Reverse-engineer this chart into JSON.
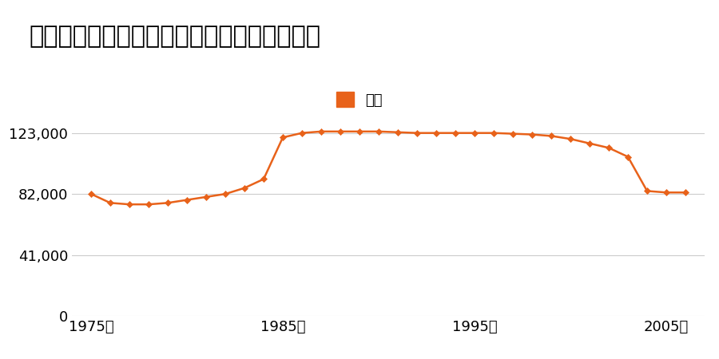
{
  "title": "鹿児島県加世田市本町２０番１１の地価推移",
  "legend_label": "価格",
  "line_color": "#E8621A",
  "marker_color": "#E8621A",
  "background_color": "#FFFFFF",
  "years": [
    1975,
    1976,
    1977,
    1978,
    1979,
    1980,
    1981,
    1982,
    1983,
    1984,
    1985,
    1986,
    1987,
    1988,
    1989,
    1990,
    1991,
    1992,
    1993,
    1994,
    1995,
    1996,
    1997,
    1998,
    1999,
    2000,
    2001,
    2002,
    2003,
    2004,
    2005,
    2006
  ],
  "values": [
    82000,
    76000,
    75000,
    75000,
    76000,
    78000,
    80000,
    82000,
    86000,
    92000,
    120000,
    123000,
    124000,
    124000,
    124000,
    124000,
    123500,
    123000,
    123000,
    123000,
    123000,
    123000,
    122500,
    122000,
    121000,
    119000,
    116000,
    113000,
    107000,
    84000,
    83000,
    83000
  ],
  "yticks": [
    0,
    41000,
    82000,
    123000
  ],
  "ytick_labels": [
    "0",
    "41,000",
    "82,000",
    "123,000"
  ],
  "xticks": [
    1975,
    1985,
    1995,
    2005
  ],
  "xtick_labels": [
    "1975年",
    "1985年",
    "1995年",
    "2005年"
  ],
  "xlim": [
    1974,
    2007
  ],
  "ylim": [
    0,
    140000
  ],
  "grid_color": "#CCCCCC",
  "title_fontsize": 22,
  "axis_fontsize": 13,
  "legend_fontsize": 13
}
